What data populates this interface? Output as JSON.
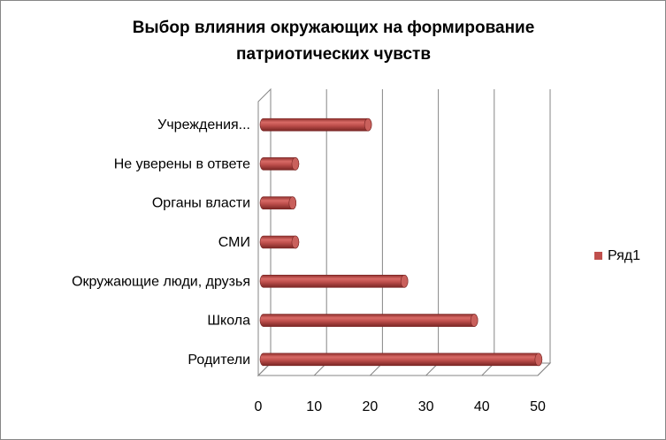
{
  "chart_data": {
    "type": "bar",
    "orientation": "horizontal",
    "style": "3d-cylinder",
    "title_lines": [
      "Выбор влияния окружающих на формирование",
      "патриотических чувств"
    ],
    "categories": [
      "Учреждения...",
      "Не уверены в ответе",
      "Органы власти",
      "СМИ",
      "Окружающие люди, друзья",
      "Школа",
      "Родители"
    ],
    "series": [
      {
        "name": "Ряд1",
        "values": [
          19,
          6,
          5.5,
          6,
          25.5,
          38,
          49.5
        ],
        "color": "#C0504D"
      }
    ],
    "xlim": [
      0,
      50
    ],
    "xticks": [
      "0",
      "10",
      "20",
      "30",
      "40",
      "50"
    ],
    "grid": true,
    "legend_position": "right"
  }
}
